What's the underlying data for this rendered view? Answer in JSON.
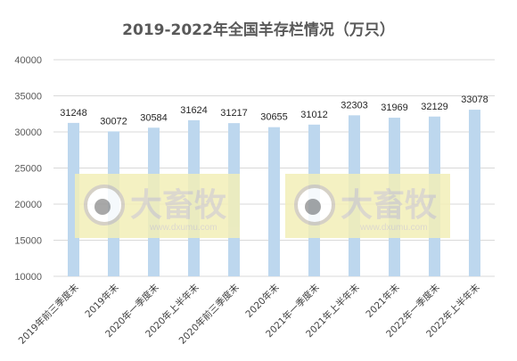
{
  "chart_data": {
    "type": "bar",
    "title": "2019-2022年全国羊存栏情况（万只）",
    "categories": [
      "2019年前三季度末",
      "2019年末",
      "2020年一季度末",
      "2020年上半年末",
      "2020年前三季度末",
      "2020年末",
      "2021年一季度末",
      "2021年上半年末",
      "2021年末",
      "2022年一季度末",
      "2022年上半年末"
    ],
    "values": [
      31248,
      30072,
      30584,
      31624,
      31217,
      30655,
      31012,
      32303,
      31969,
      32129,
      33078
    ],
    "data_labels": [
      "31248",
      "30072",
      "30584",
      "31624",
      "31217",
      "30655",
      "31012",
      "32303",
      "31969",
      "32129",
      "33078"
    ],
    "ylim": [
      10000,
      40000
    ],
    "yticks": [
      "10000",
      "15000",
      "20000",
      "25000",
      "30000",
      "35000",
      "40000"
    ],
    "grid": true,
    "legend": "none",
    "bar_color": "#bdd7ee",
    "grid_color": "#d9d9d9"
  },
  "watermark": {
    "brand_text": "大畜牧",
    "url_text": "www.dxumu.com",
    "box_color": "#f3efb8"
  }
}
